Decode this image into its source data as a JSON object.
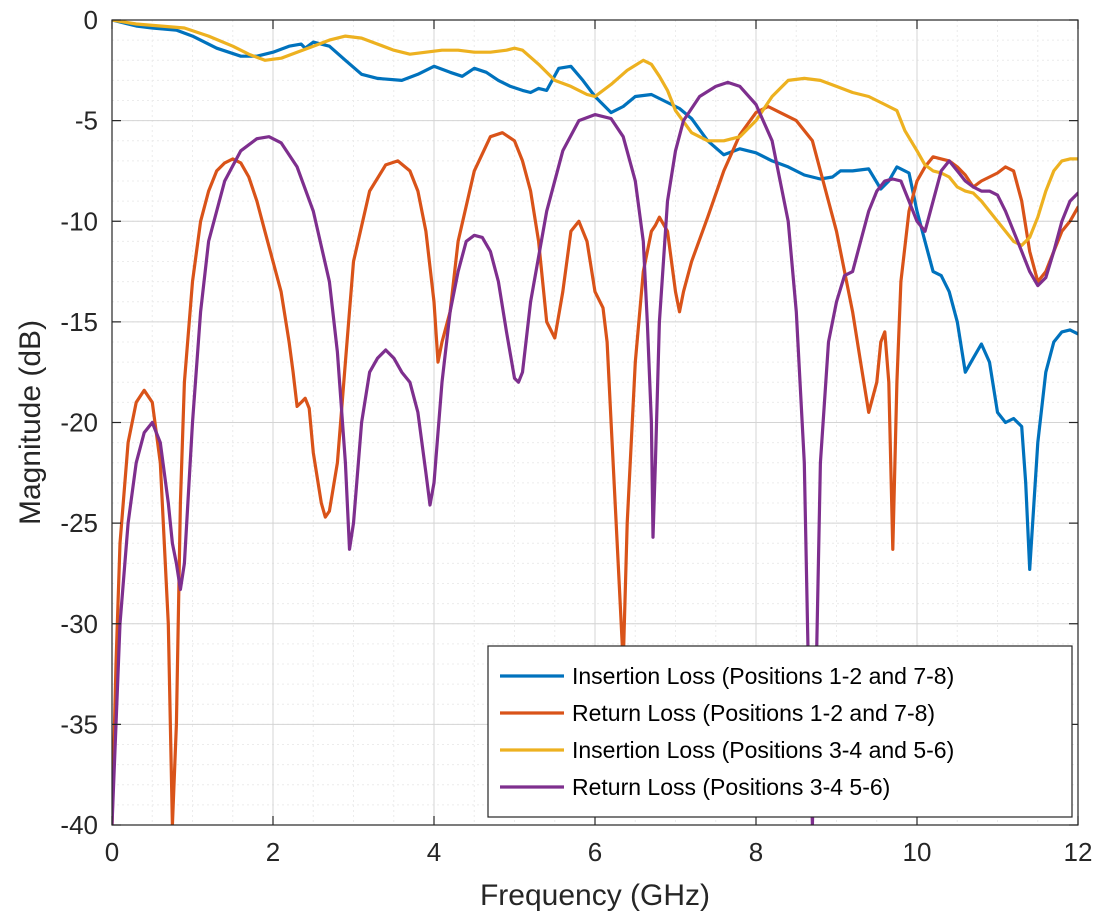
{
  "chart_data": {
    "type": "line",
    "title": "",
    "xlabel": "Frequency (GHz)",
    "ylabel": "Magnitude (dB)",
    "xlim": [
      0,
      12
    ],
    "ylim": [
      -40,
      0
    ],
    "x_ticks": [
      0,
      2,
      4,
      6,
      8,
      10,
      12
    ],
    "y_ticks": [
      0,
      -5,
      -10,
      -15,
      -20,
      -25,
      -30,
      -35,
      -40
    ],
    "x_tick_labels": [
      "0",
      "2",
      "4",
      "6",
      "8",
      "10",
      "12"
    ],
    "y_tick_labels": [
      "0",
      "-5",
      "-10",
      "-15",
      "-20",
      "-25",
      "-30",
      "-35",
      "-40"
    ],
    "grid": true,
    "minor_grid": true,
    "legend_position": "bottom-right",
    "series": [
      {
        "name": "Insertion Loss (Positions 1-2 and 7-8)",
        "color": "#0072BD",
        "x": [
          0,
          0.3,
          0.5,
          0.8,
          1.0,
          1.3,
          1.6,
          1.8,
          2.0,
          2.2,
          2.35,
          2.4,
          2.5,
          2.7,
          2.9,
          3.1,
          3.3,
          3.6,
          3.8,
          4.0,
          4.2,
          4.35,
          4.5,
          4.65,
          4.8,
          4.95,
          5.1,
          5.2,
          5.3,
          5.4,
          5.55,
          5.7,
          5.85,
          6.0,
          6.2,
          6.35,
          6.5,
          6.7,
          6.9,
          7.05,
          7.2,
          7.4,
          7.6,
          7.8,
          8.0,
          8.2,
          8.4,
          8.6,
          8.8,
          8.95,
          9.05,
          9.2,
          9.4,
          9.55,
          9.65,
          9.75,
          9.9,
          10.0,
          10.1,
          10.2,
          10.3,
          10.4,
          10.5,
          10.6,
          10.7,
          10.8,
          10.9,
          11.0,
          11.1,
          11.2,
          11.3,
          11.35,
          11.4,
          11.5,
          11.6,
          11.7,
          11.8,
          11.9,
          12.0
        ],
        "values": [
          0,
          -0.3,
          -0.4,
          -0.5,
          -0.8,
          -1.4,
          -1.8,
          -1.8,
          -1.6,
          -1.3,
          -1.2,
          -1.4,
          -1.1,
          -1.3,
          -2.0,
          -2.7,
          -2.9,
          -3.0,
          -2.7,
          -2.3,
          -2.6,
          -2.8,
          -2.4,
          -2.6,
          -3.0,
          -3.3,
          -3.5,
          -3.6,
          -3.4,
          -3.5,
          -2.4,
          -2.3,
          -3.0,
          -3.8,
          -4.6,
          -4.3,
          -3.8,
          -3.7,
          -4.1,
          -4.4,
          -4.9,
          -6.0,
          -6.7,
          -6.4,
          -6.6,
          -7.0,
          -7.3,
          -7.7,
          -7.9,
          -7.8,
          -7.5,
          -7.5,
          -7.4,
          -8.4,
          -8.0,
          -7.3,
          -7.6,
          -9.5,
          -11.0,
          -12.5,
          -12.7,
          -13.5,
          -15.0,
          -17.5,
          -16.8,
          -16.1,
          -17.0,
          -19.5,
          -20.0,
          -19.8,
          -20.2,
          -23.0,
          -27.3,
          -21.0,
          -17.5,
          -16.0,
          -15.5,
          -15.4,
          -15.6
        ]
      },
      {
        "name": "Return Loss (Positions 1-2 and 7-8)",
        "color": "#D95319",
        "x": [
          0,
          0.05,
          0.1,
          0.2,
          0.3,
          0.4,
          0.5,
          0.6,
          0.7,
          0.75,
          0.8,
          0.85,
          0.9,
          1.0,
          1.1,
          1.2,
          1.3,
          1.4,
          1.5,
          1.6,
          1.7,
          1.8,
          1.9,
          2.0,
          2.1,
          2.2,
          2.25,
          2.3,
          2.35,
          2.4,
          2.45,
          2.5,
          2.6,
          2.65,
          2.7,
          2.8,
          2.9,
          3.0,
          3.2,
          3.4,
          3.55,
          3.7,
          3.8,
          3.9,
          4.0,
          4.05,
          4.1,
          4.2,
          4.3,
          4.5,
          4.7,
          4.85,
          5.0,
          5.1,
          5.2,
          5.3,
          5.4,
          5.5,
          5.6,
          5.7,
          5.8,
          5.9,
          6.0,
          6.1,
          6.15,
          6.2,
          6.3,
          6.35,
          6.4,
          6.5,
          6.6,
          6.7,
          6.75,
          6.8,
          6.9,
          7.0,
          7.05,
          7.1,
          7.2,
          7.4,
          7.6,
          7.8,
          8.0,
          8.15,
          8.3,
          8.5,
          8.7,
          8.8,
          9.0,
          9.2,
          9.3,
          9.4,
          9.5,
          9.55,
          9.6,
          9.65,
          9.7,
          9.75,
          9.8,
          9.9,
          10.0,
          10.1,
          10.2,
          10.3,
          10.4,
          10.5,
          10.6,
          10.7,
          10.8,
          10.9,
          11.0,
          11.1,
          11.2,
          11.3,
          11.4,
          11.5,
          11.6,
          11.7,
          11.8,
          11.9,
          12.0
        ],
        "values": [
          -40,
          -32,
          -26,
          -21,
          -19,
          -18.4,
          -19.0,
          -22.0,
          -30.0,
          -40,
          -35,
          -24.0,
          -18.0,
          -13.0,
          -10.0,
          -8.5,
          -7.5,
          -7.1,
          -6.9,
          -7.1,
          -7.8,
          -9.0,
          -10.5,
          -12.0,
          -13.5,
          -16.0,
          -17.5,
          -19.2,
          -19.0,
          -18.8,
          -19.3,
          -21.5,
          -24.0,
          -24.7,
          -24.4,
          -22.0,
          -17.0,
          -12.0,
          -8.5,
          -7.2,
          -7.0,
          -7.5,
          -8.5,
          -10.5,
          -14.0,
          -17.0,
          -16.0,
          -14.5,
          -11.0,
          -7.5,
          -5.8,
          -5.6,
          -6.0,
          -7.0,
          -8.5,
          -11.0,
          -15.0,
          -15.8,
          -13.5,
          -10.5,
          -10.0,
          -11.0,
          -13.5,
          -14.3,
          -16.0,
          -20.0,
          -28.0,
          -32.0,
          -25.0,
          -17.0,
          -12.5,
          -10.5,
          -10.2,
          -9.8,
          -10.5,
          -13.5,
          -14.5,
          -13.5,
          -12.0,
          -9.8,
          -7.5,
          -5.7,
          -4.6,
          -4.3,
          -4.6,
          -5.0,
          -6.0,
          -7.5,
          -10.5,
          -14.5,
          -17.0,
          -19.5,
          -18.0,
          -16.0,
          -15.5,
          -18.0,
          -26.3,
          -18.0,
          -13.0,
          -9.5,
          -8.0,
          -7.3,
          -6.8,
          -6.9,
          -7.0,
          -7.3,
          -7.7,
          -8.3,
          -8.0,
          -7.8,
          -7.6,
          -7.3,
          -7.5,
          -9.0,
          -11.5,
          -13.0,
          -12.5,
          -11.5,
          -10.5,
          -10.0,
          -9.3
        ]
      },
      {
        "name": "Insertion Loss (Positions 3-4 and 5-6)",
        "color": "#EDB120",
        "x": [
          0,
          0.3,
          0.6,
          0.9,
          1.2,
          1.5,
          1.7,
          1.9,
          2.1,
          2.3,
          2.5,
          2.7,
          2.9,
          3.1,
          3.3,
          3.5,
          3.7,
          3.9,
          4.1,
          4.3,
          4.5,
          4.7,
          4.9,
          5.0,
          5.1,
          5.3,
          5.5,
          5.7,
          5.9,
          6.0,
          6.2,
          6.4,
          6.6,
          6.7,
          6.8,
          6.9,
          7.0,
          7.2,
          7.4,
          7.6,
          7.8,
          8.0,
          8.2,
          8.4,
          8.6,
          8.8,
          9.0,
          9.2,
          9.4,
          9.6,
          9.75,
          9.85,
          10.0,
          10.1,
          10.2,
          10.3,
          10.4,
          10.5,
          10.6,
          10.7,
          10.8,
          10.9,
          11.0,
          11.1,
          11.2,
          11.3,
          11.4,
          11.5,
          11.6,
          11.7,
          11.8,
          11.9,
          12.0
        ],
        "values": [
          0,
          -0.2,
          -0.3,
          -0.4,
          -0.8,
          -1.3,
          -1.7,
          -2.0,
          -1.9,
          -1.6,
          -1.3,
          -1.0,
          -0.8,
          -0.9,
          -1.2,
          -1.5,
          -1.7,
          -1.6,
          -1.5,
          -1.5,
          -1.6,
          -1.6,
          -1.5,
          -1.4,
          -1.5,
          -2.2,
          -3.0,
          -3.3,
          -3.7,
          -3.8,
          -3.2,
          -2.5,
          -2.0,
          -2.2,
          -2.8,
          -3.5,
          -4.5,
          -5.6,
          -6.0,
          -6.0,
          -5.8,
          -5.0,
          -3.8,
          -3.0,
          -2.9,
          -3.0,
          -3.3,
          -3.6,
          -3.8,
          -4.2,
          -4.5,
          -5.5,
          -6.5,
          -7.2,
          -7.5,
          -7.6,
          -7.8,
          -8.3,
          -8.5,
          -8.6,
          -9.0,
          -9.5,
          -10.0,
          -10.5,
          -11.0,
          -11.2,
          -10.8,
          -9.8,
          -8.5,
          -7.5,
          -7.0,
          -6.9,
          -6.9
        ]
      },
      {
        "name": "Return Loss (Positions 3-4 5-6)",
        "color": "#7E2F8E",
        "x": [
          0,
          0.05,
          0.1,
          0.2,
          0.3,
          0.4,
          0.5,
          0.6,
          0.7,
          0.75,
          0.8,
          0.85,
          0.9,
          1.0,
          1.1,
          1.2,
          1.4,
          1.6,
          1.8,
          1.95,
          2.1,
          2.3,
          2.5,
          2.7,
          2.8,
          2.9,
          2.95,
          3.0,
          3.1,
          3.2,
          3.3,
          3.4,
          3.5,
          3.6,
          3.7,
          3.8,
          3.9,
          3.95,
          4.0,
          4.1,
          4.2,
          4.3,
          4.4,
          4.5,
          4.6,
          4.7,
          4.8,
          4.9,
          5.0,
          5.05,
          5.1,
          5.2,
          5.4,
          5.6,
          5.8,
          6.0,
          6.2,
          6.35,
          6.5,
          6.6,
          6.65,
          6.7,
          6.72,
          6.75,
          6.8,
          6.9,
          7.0,
          7.1,
          7.3,
          7.5,
          7.65,
          7.8,
          8.0,
          8.2,
          8.4,
          8.5,
          8.6,
          8.65,
          8.7,
          8.75,
          8.8,
          8.9,
          9.0,
          9.1,
          9.2,
          9.3,
          9.4,
          9.5,
          9.6,
          9.7,
          9.8,
          9.9,
          10.0,
          10.1,
          10.2,
          10.3,
          10.4,
          10.5,
          10.6,
          10.7,
          10.8,
          10.9,
          11.0,
          11.1,
          11.2,
          11.3,
          11.4,
          11.5,
          11.6,
          11.7,
          11.8,
          11.9,
          12.0
        ],
        "values": [
          -40,
          -35,
          -30,
          -25,
          -22,
          -20.5,
          -20.0,
          -21.0,
          -24.0,
          -26.0,
          -27.0,
          -28.3,
          -27.0,
          -20.0,
          -14.5,
          -11.0,
          -8.0,
          -6.5,
          -5.9,
          -5.8,
          -6.1,
          -7.3,
          -9.5,
          -13.0,
          -16.5,
          -22.0,
          -26.3,
          -25.0,
          -20.0,
          -17.5,
          -16.8,
          -16.4,
          -16.8,
          -17.5,
          -18.0,
          -19.5,
          -22.5,
          -24.1,
          -23.0,
          -18.0,
          -14.5,
          -12.5,
          -11.0,
          -10.7,
          -10.8,
          -11.5,
          -13.0,
          -15.5,
          -17.8,
          -18.0,
          -17.5,
          -14.0,
          -9.5,
          -6.5,
          -5.0,
          -4.7,
          -4.9,
          -5.8,
          -8.0,
          -11.0,
          -15.0,
          -20.0,
          -25.7,
          -22.0,
          -15.0,
          -9.0,
          -6.5,
          -5.0,
          -3.8,
          -3.3,
          -3.1,
          -3.3,
          -4.2,
          -6.0,
          -10.0,
          -14.5,
          -22.0,
          -32.0,
          -40,
          -32.0,
          -22.0,
          -16.0,
          -14.0,
          -12.7,
          -12.5,
          -11.0,
          -9.5,
          -8.5,
          -8.0,
          -7.9,
          -8.0,
          -9.0,
          -10.0,
          -10.5,
          -9.0,
          -7.5,
          -7.0,
          -7.5,
          -8.0,
          -8.3,
          -8.5,
          -8.5,
          -8.7,
          -9.5,
          -10.5,
          -11.5,
          -12.5,
          -13.2,
          -12.8,
          -11.5,
          -10.0,
          -9.0,
          -8.6
        ]
      }
    ]
  }
}
